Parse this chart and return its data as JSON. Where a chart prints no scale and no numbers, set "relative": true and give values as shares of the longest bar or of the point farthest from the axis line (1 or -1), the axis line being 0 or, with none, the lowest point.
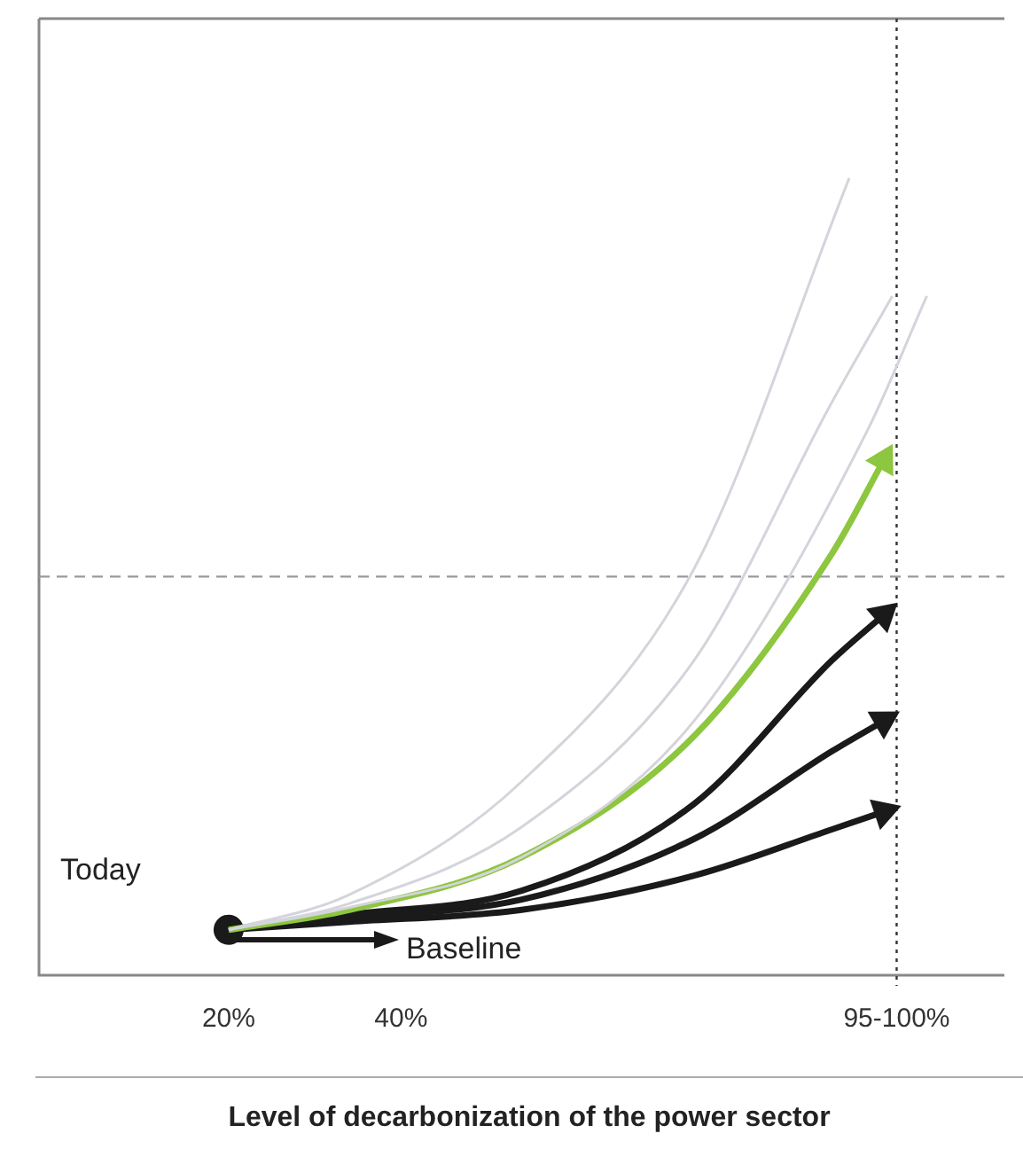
{
  "chart_data": {
    "type": "line",
    "relative": true,
    "xlabel": "Level of decarbonization of the power sector",
    "xlim": [
      -2,
      110
    ],
    "xticks": [
      {
        "value": 20,
        "label": "20%"
      },
      {
        "value": 40,
        "label": "40%"
      },
      {
        "value": 97.5,
        "label": "95-100%"
      }
    ],
    "legend": false,
    "grid": false,
    "tick_labels": "x",
    "marker": "none",
    "annotations": [
      "Today",
      "Baseline"
    ],
    "ref_lines": [
      {
        "axis": "x",
        "value": 97.5,
        "line_style": "dotted",
        "color": "#333333"
      },
      {
        "axis": "y",
        "value": 0.5,
        "line_style": "dashed",
        "color": "#999999"
      }
    ],
    "series": [
      {
        "color": "#d4d4dc",
        "x": [
          20,
          34,
          54,
          74,
          92
        ],
        "values": [
          0.057,
          0.101,
          0.243,
          0.51,
          1
        ]
      },
      {
        "color": "#d4d4dc",
        "x": [
          20,
          34,
          54,
          74,
          90,
          97
        ],
        "values": [
          0.057,
          0.09,
          0.186,
          0.395,
          0.719,
          0.852
        ]
      },
      {
        "color": "#d4d4dc",
        "x": [
          20,
          34,
          54,
          74,
          94,
          101
        ],
        "values": [
          0.057,
          0.085,
          0.148,
          0.319,
          0.681,
          0.852
        ]
      },
      {
        "color": "#8dc63f",
        "x": [
          20,
          34,
          54,
          74,
          90,
          96
        ],
        "values": [
          0.057,
          0.082,
          0.148,
          0.3,
          0.529,
          0.646
        ]
      },
      {
        "color": "#1a1a1a",
        "x": [
          20,
          34,
          54,
          74,
          90,
          96
        ],
        "values": [
          0.057,
          0.076,
          0.106,
          0.215,
          0.395,
          0.452
        ]
      },
      {
        "color": "#1a1a1a",
        "x": [
          20,
          34,
          54,
          74,
          90,
          96
        ],
        "values": [
          0.057,
          0.072,
          0.095,
          0.171,
          0.281,
          0.319
        ]
      },
      {
        "color": "#1a1a1a",
        "x": [
          20,
          34,
          54,
          74,
          90,
          96
        ],
        "values": [
          0.057,
          0.067,
          0.082,
          0.125,
          0.183,
          0.205
        ]
      },
      {
        "type": "scatter",
        "color": "#1a1a1a",
        "marker": "circle",
        "x": [
          20
        ],
        "values": [
          0.057
        ]
      }
    ]
  }
}
